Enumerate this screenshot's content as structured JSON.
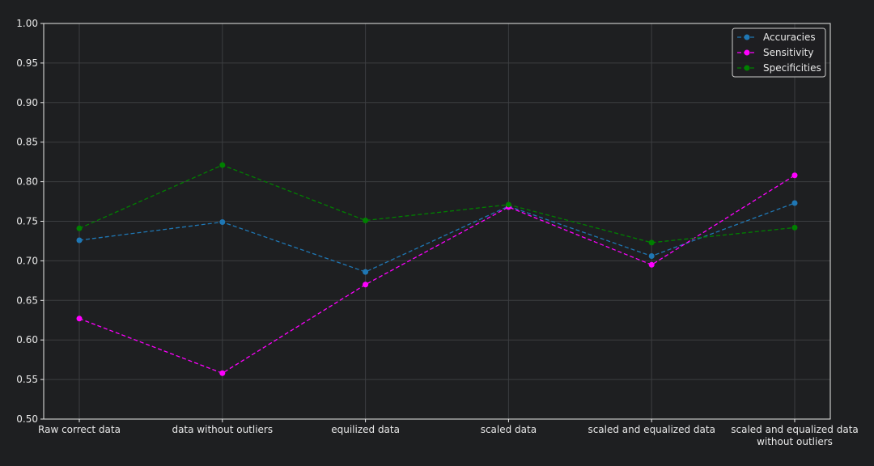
{
  "chart_data": {
    "type": "line",
    "categories": [
      [
        "Raw correct data"
      ],
      [
        "data without outliers"
      ],
      [
        "equilized data"
      ],
      [
        "scaled data"
      ],
      [
        "scaled and equalized data"
      ],
      [
        "scaled and equalized data",
        "without outliers"
      ]
    ],
    "series": [
      {
        "name": "Accuracies",
        "color": "#1f77b4",
        "values": [
          0.726,
          0.749,
          0.686,
          0.769,
          0.706,
          0.773
        ]
      },
      {
        "name": "Sensitivity",
        "color": "#ff00ff",
        "values": [
          0.627,
          0.558,
          0.67,
          0.768,
          0.695,
          0.808
        ]
      },
      {
        "name": "Specificities",
        "color": "#008000",
        "values": [
          0.741,
          0.821,
          0.751,
          0.771,
          0.723,
          0.742
        ]
      }
    ],
    "ylim": [
      0.5,
      1.0
    ],
    "yticks": [
      "0.50",
      "0.55",
      "0.60",
      "0.65",
      "0.70",
      "0.75",
      "0.80",
      "0.85",
      "0.90",
      "0.95",
      "1.00"
    ],
    "grid": true,
    "line_style": "dashed",
    "marker": "circle",
    "legend_position": "top-right",
    "title": "",
    "xlabel": "",
    "ylabel": ""
  }
}
